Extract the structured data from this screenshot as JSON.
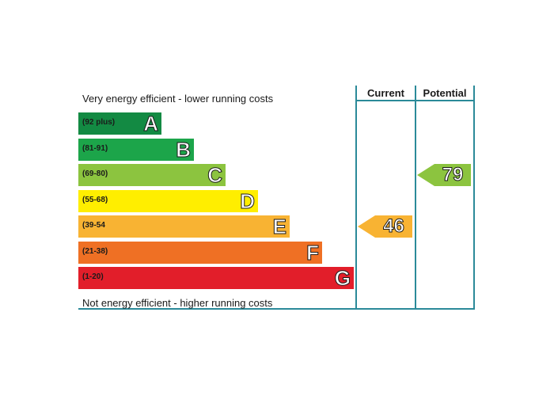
{
  "chart_data": {
    "type": "bar",
    "top_caption": "Very energy efficient - lower running costs",
    "bottom_caption": "Not energy efficient - higher running costs",
    "columns": [
      "Current",
      "Potential"
    ],
    "bands": [
      {
        "range": "(92 plus)",
        "letter": "A",
        "color": "#138a43"
      },
      {
        "range": "(81-91)",
        "letter": "B",
        "color": "#1ca54a"
      },
      {
        "range": "(69-80)",
        "letter": "C",
        "color": "#8cc43f"
      },
      {
        "range": "(55-68)",
        "letter": "D",
        "color": "#ffee00"
      },
      {
        "range": "(39-54",
        "letter": "E",
        "color": "#f8b333"
      },
      {
        "range": "(21-38)",
        "letter": "F",
        "color": "#ef7024"
      },
      {
        "range": "(1-20)",
        "letter": "G",
        "color": "#e21e2a"
      }
    ],
    "current": {
      "value": 46,
      "band": "E",
      "color": "#f8b333"
    },
    "potential": {
      "value": 79,
      "band": "C",
      "color": "#8cc43f"
    }
  }
}
